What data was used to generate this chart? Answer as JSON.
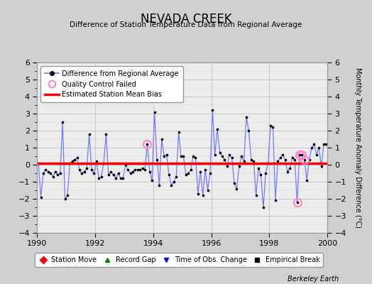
{
  "title": "NEVADA CREEK",
  "subtitle": "Difference of Station Temperature Data from Regional Average",
  "ylabel": "Monthly Temperature Anomaly Difference (°C)",
  "xlabel_bottom": "Berkeley Earth",
  "xlim": [
    1990,
    2000
  ],
  "ylim": [
    -4,
    6
  ],
  "yticks": [
    -4,
    -3,
    -2,
    -1,
    0,
    1,
    2,
    3,
    4,
    5,
    6
  ],
  "xticks": [
    1990,
    1992,
    1994,
    1996,
    1998,
    2000
  ],
  "bias": 0.07,
  "line_color": "#7777ff",
  "dot_color": "#000000",
  "bias_color": "#ff0000",
  "qc_marker_color": "#ff88cc",
  "background_color": "#d0d0d0",
  "plot_bg_color": "#ececec",
  "times": [
    1990.042,
    1990.125,
    1990.208,
    1990.292,
    1990.375,
    1990.458,
    1990.542,
    1990.625,
    1990.708,
    1990.792,
    1990.875,
    1990.958,
    1991.042,
    1991.125,
    1991.208,
    1991.292,
    1991.375,
    1991.458,
    1991.542,
    1991.625,
    1991.708,
    1991.792,
    1991.875,
    1991.958,
    1992.042,
    1992.125,
    1992.208,
    1992.292,
    1992.375,
    1992.458,
    1992.542,
    1992.625,
    1992.708,
    1992.792,
    1992.875,
    1992.958,
    1993.042,
    1993.125,
    1993.208,
    1993.292,
    1993.375,
    1993.458,
    1993.542,
    1993.625,
    1993.708,
    1993.792,
    1993.875,
    1993.958,
    1994.042,
    1994.125,
    1994.208,
    1994.292,
    1994.375,
    1994.458,
    1994.542,
    1994.625,
    1994.708,
    1994.792,
    1994.875,
    1994.958,
    1995.042,
    1995.125,
    1995.208,
    1995.292,
    1995.375,
    1995.458,
    1995.542,
    1995.625,
    1995.708,
    1995.792,
    1995.875,
    1995.958,
    1996.042,
    1996.125,
    1996.208,
    1996.292,
    1996.375,
    1996.458,
    1996.542,
    1996.625,
    1996.708,
    1996.792,
    1996.875,
    1996.958,
    1997.042,
    1997.125,
    1997.208,
    1997.292,
    1997.375,
    1997.458,
    1997.542,
    1997.625,
    1997.708,
    1997.792,
    1997.875,
    1997.958,
    1998.042,
    1998.125,
    1998.208,
    1998.292,
    1998.375,
    1998.458,
    1998.542,
    1998.625,
    1998.708,
    1998.792,
    1998.875,
    1998.958,
    1999.042,
    1999.125,
    1999.208,
    1999.292,
    1999.375,
    1999.458,
    1999.542,
    1999.625,
    1999.708,
    1999.792,
    1999.875,
    1999.958
  ],
  "values": [
    0.1,
    -1.9,
    -0.5,
    -0.3,
    -0.4,
    -0.5,
    -0.7,
    -0.4,
    -0.6,
    -0.5,
    2.5,
    -2.0,
    -1.8,
    0.1,
    0.2,
    0.3,
    0.4,
    -0.3,
    -0.5,
    -0.4,
    -0.2,
    1.8,
    -0.3,
    -0.5,
    0.2,
    -0.8,
    -0.7,
    0.1,
    1.8,
    -0.6,
    -0.4,
    -0.6,
    -0.8,
    -0.5,
    -0.8,
    -0.8,
    0.0,
    -0.3,
    -0.5,
    -0.4,
    -0.3,
    -0.3,
    -0.3,
    -0.2,
    -0.3,
    1.2,
    -0.4,
    -0.9,
    3.1,
    0.3,
    -1.2,
    1.5,
    0.5,
    0.6,
    -0.6,
    -1.2,
    -1.0,
    -0.7,
    1.9,
    0.5,
    0.5,
    -0.6,
    -0.5,
    -0.3,
    0.5,
    0.4,
    -1.7,
    -0.4,
    -1.8,
    -0.3,
    -1.5,
    -0.5,
    3.2,
    0.6,
    2.1,
    0.7,
    0.5,
    0.3,
    -0.1,
    0.6,
    0.4,
    -1.1,
    -1.4,
    -0.1,
    0.5,
    0.2,
    2.8,
    2.0,
    0.3,
    0.2,
    -1.8,
    -0.2,
    -0.6,
    -2.5,
    -0.5,
    0.1,
    2.3,
    2.2,
    -2.1,
    0.2,
    0.4,
    0.6,
    0.3,
    -0.4,
    -0.2,
    0.4,
    0.3,
    -2.2,
    0.6,
    0.6,
    0.3,
    -0.9,
    0.3,
    1.0,
    1.2,
    0.6,
    1.0,
    -0.1,
    1.2,
    1.2
  ],
  "qc_failed_indices": [
    45,
    107,
    108,
    109,
    110
  ],
  "legend1_labels": [
    "Difference from Regional Average",
    "Quality Control Failed",
    "Estimated Station Mean Bias"
  ],
  "legend2_labels": [
    "Station Move",
    "Record Gap",
    "Time of Obs. Change",
    "Empirical Break"
  ]
}
